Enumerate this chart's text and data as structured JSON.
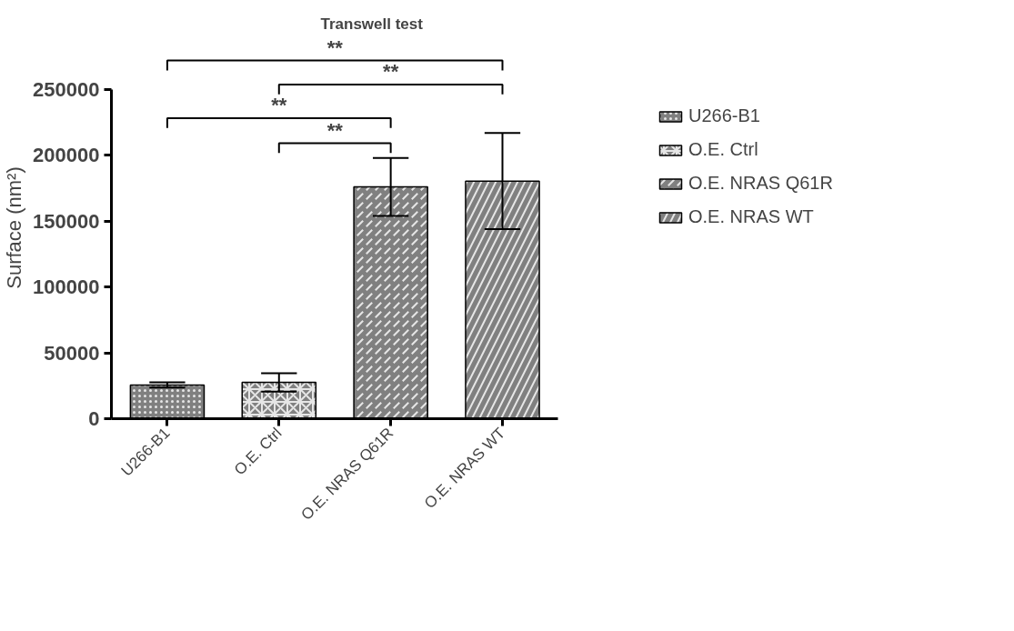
{
  "chart_data": {
    "type": "bar",
    "title": "Transwell test",
    "ylabel": "Surface (nm²)",
    "categories": [
      "U266-B1",
      "O.E. Ctrl",
      "O.E. NRAS Q61R",
      "O.E. NRAS WT"
    ],
    "series": [
      {
        "name": "U266-B1",
        "color": "#808080",
        "values": [
          25600,
          null,
          null,
          null
        ],
        "errors": [
          2000,
          null,
          null,
          null
        ]
      },
      {
        "name": "O.E. Ctrl",
        "color": "#808080",
        "values": [
          null,
          27600,
          null,
          null
        ],
        "errors": [
          null,
          7000,
          null,
          null
        ]
      },
      {
        "name": "O.E. NRAS Q61R",
        "color": "#808080",
        "values": [
          null,
          null,
          176000,
          null
        ],
        "errors": [
          null,
          null,
          22000,
          null
        ]
      },
      {
        "name": "O.E. NRAS WT",
        "color": "#808080",
        "values": [
          null,
          null,
          null,
          180400
        ],
        "errors": [
          null,
          null,
          null,
          36500
        ]
      }
    ],
    "ylim": [
      0,
      250000
    ],
    "yticks": [
      0,
      50000,
      100000,
      150000,
      200000,
      250000
    ],
    "grid": false,
    "legend": "right",
    "annotations": [
      "**",
      "**",
      "**",
      "**"
    ]
  }
}
